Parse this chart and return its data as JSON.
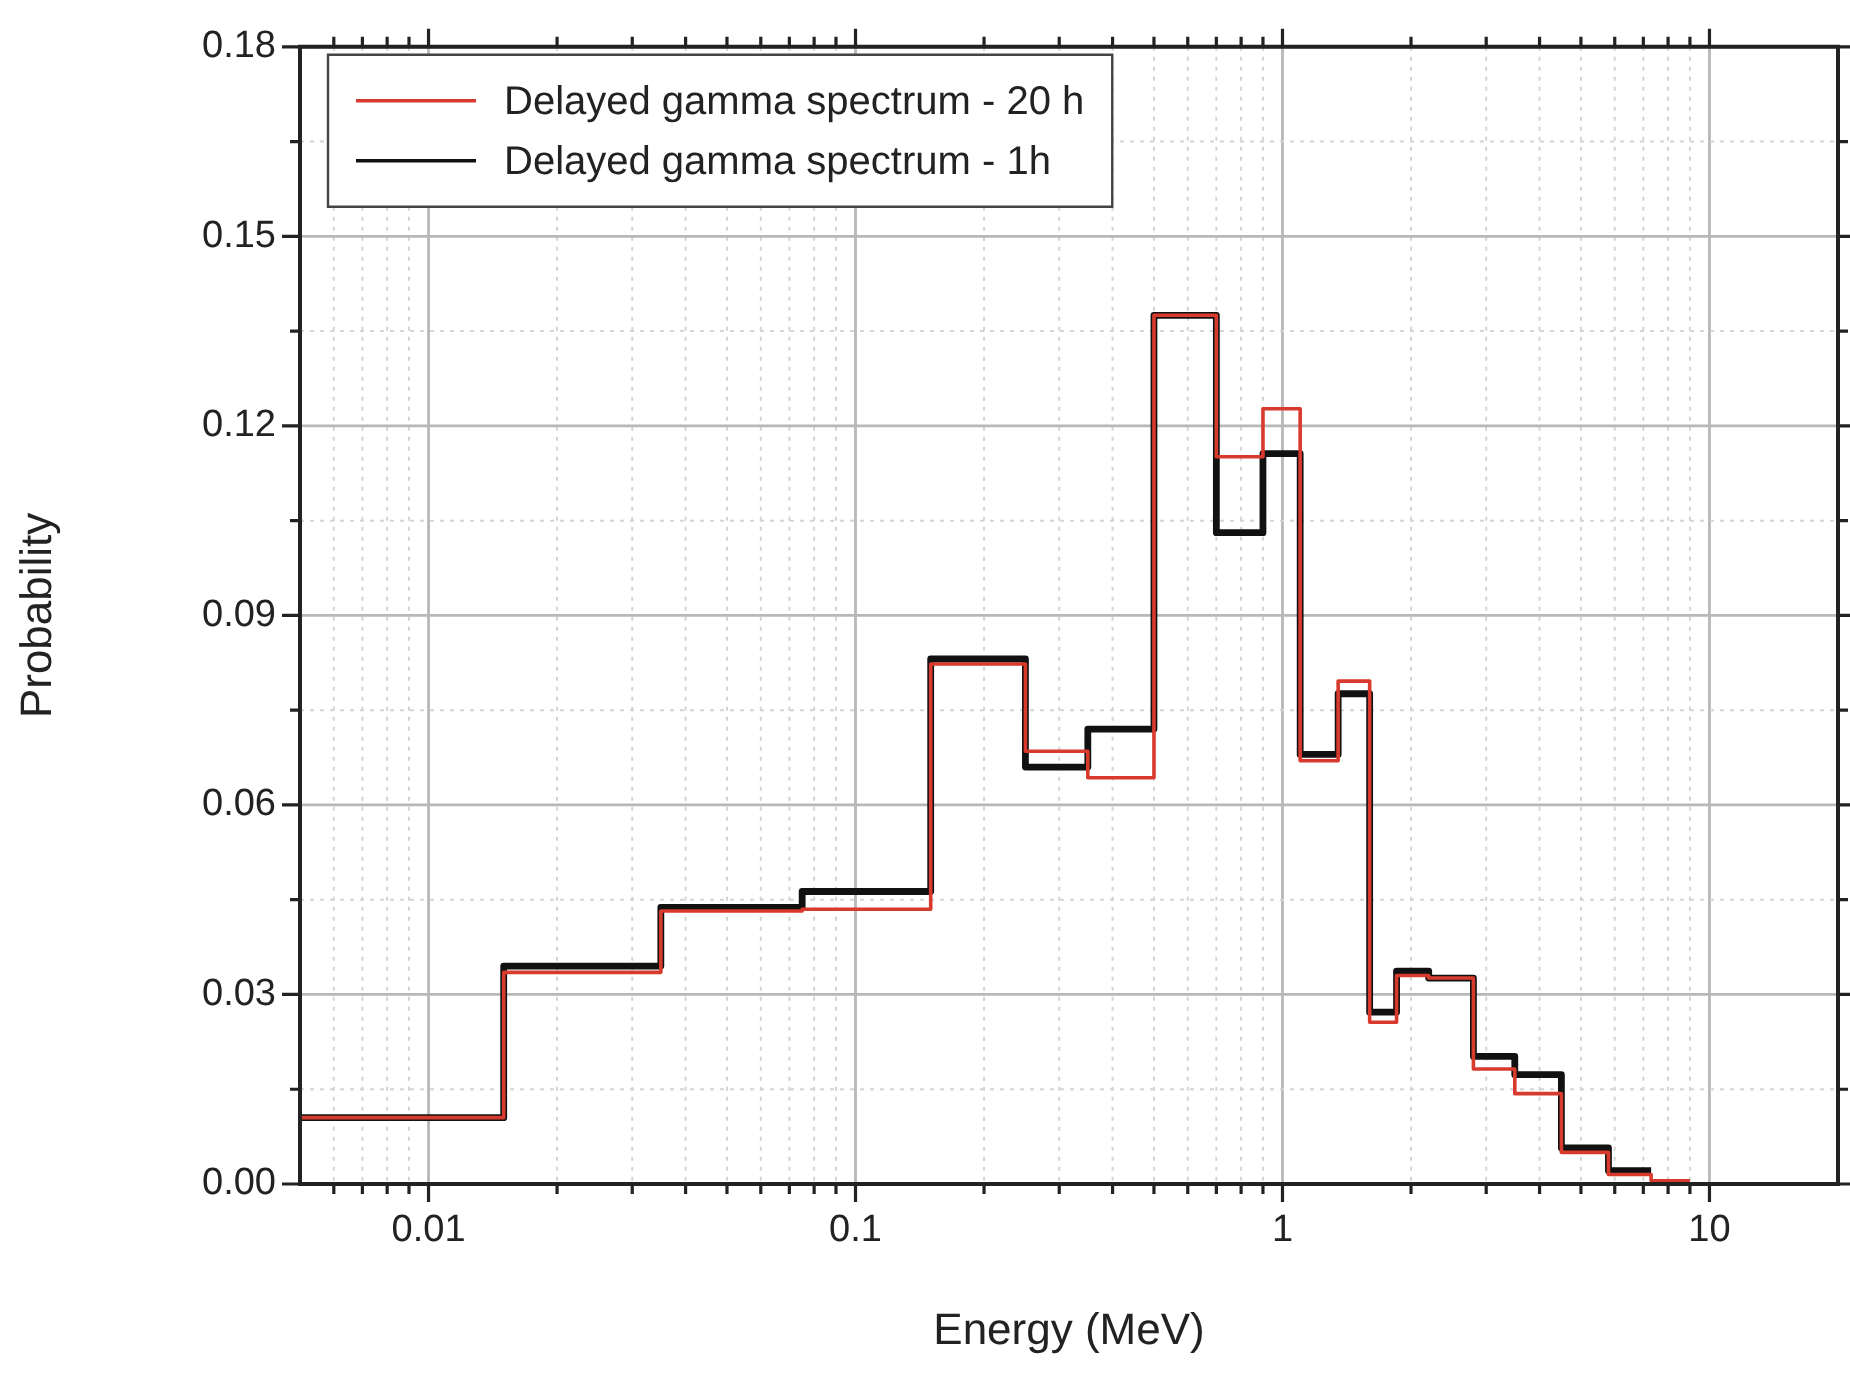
{
  "chart_data": {
    "type": "step",
    "xlabel": "Energy (MeV)",
    "ylabel": "Probability",
    "log": "x",
    "grid": true,
    "legend": "top left",
    "x": [
      0.005,
      0.015,
      0.035,
      0.075,
      0.15,
      0.25,
      0.35,
      0.5,
      0.7,
      0.9,
      1.1,
      1.35,
      1.6,
      1.85,
      2.2,
      2.8,
      3.5,
      4.5,
      5.8,
      7.3,
      9
    ],
    "series": [
      {
        "name": "Delayed gamma spectrum - 20 h",
        "color": "#d83a2e",
        "values": [
          0.0105,
          0.0335,
          0.0432,
          0.0435,
          0.0823,
          0.0685,
          0.0643,
          0.1375,
          0.1151,
          0.1227,
          0.067,
          0.0796,
          0.0256,
          0.033,
          0.0326,
          0.0182,
          0.0143,
          0.005,
          0.0015,
          0.0005,
          0.0005
        ]
      },
      {
        "name": "Delayed gamma spectrum - 1h",
        "color": "#111111",
        "x": [
          0.005,
          0.015,
          0.035,
          0.075,
          0.15,
          0.25,
          0.35,
          0.5,
          0.7,
          0.9,
          1.1,
          1.35,
          1.6,
          1.85,
          2.2,
          2.8,
          3.5,
          4.5,
          5.8,
          7.3
        ],
        "values": [
          0.0105,
          0.0345,
          0.0438,
          0.0463,
          0.0831,
          0.066,
          0.072,
          0.1375,
          0.1031,
          0.1156,
          0.068,
          0.0776,
          0.0272,
          0.0337,
          0.0326,
          0.0202,
          0.0173,
          0.0057,
          0.0021,
          0.0021
        ]
      }
    ],
    "xlim": [
      0.005,
      20
    ],
    "xticks": [
      {
        "value": 0.006,
        "label": null
      },
      {
        "value": 0.007,
        "label": null
      },
      {
        "value": 0.008,
        "label": null
      },
      {
        "value": 0.009,
        "label": null
      },
      0.01,
      {
        "value": 0.02,
        "label": null
      },
      {
        "value": 0.03,
        "label": null
      },
      {
        "value": 0.04,
        "label": null
      },
      {
        "value": 0.05,
        "label": null
      },
      {
        "value": 0.06,
        "label": null
      },
      {
        "value": 0.07,
        "label": null
      },
      {
        "value": 0.08,
        "label": null
      },
      {
        "value": 0.09,
        "label": null
      },
      0.1,
      {
        "value": 0.2,
        "label": null
      },
      {
        "value": 0.3,
        "label": null
      },
      {
        "value": 0.4,
        "label": null
      },
      {
        "value": 0.5,
        "label": null
      },
      {
        "value": 0.6,
        "label": null
      },
      {
        "value": 0.7,
        "label": null
      },
      {
        "value": 0.8,
        "label": null
      },
      {
        "value": 0.9,
        "label": null
      },
      1,
      {
        "value": 2,
        "label": null
      },
      {
        "value": 3,
        "label": null
      },
      {
        "value": 4,
        "label": null
      },
      {
        "value": 5,
        "label": null
      },
      {
        "value": 6,
        "label": null
      },
      {
        "value": 7,
        "label": null
      },
      {
        "value": 8,
        "label": null
      },
      {
        "value": 9,
        "label": null
      },
      10
    ],
    "ylim": [
      0,
      0.18
    ],
    "yticks": [
      {
        "value": 0,
        "label": "0.00"
      },
      {
        "value": 0.015,
        "label": null
      },
      {
        "value": 0.03,
        "label": "0.03"
      },
      {
        "value": 0.045,
        "label": null
      },
      {
        "value": 0.06,
        "label": "0.06"
      },
      {
        "value": 0.075,
        "label": null
      },
      {
        "value": 0.09,
        "label": "0.09"
      },
      {
        "value": 0.105,
        "label": null
      },
      {
        "value": 0.12,
        "label": "0.12"
      },
      {
        "value": 0.135,
        "label": null
      },
      {
        "value": 0.15,
        "label": "0.15"
      },
      {
        "value": 0.165,
        "label": null
      },
      {
        "value": 0.18,
        "label": "0.18"
      }
    ]
  }
}
